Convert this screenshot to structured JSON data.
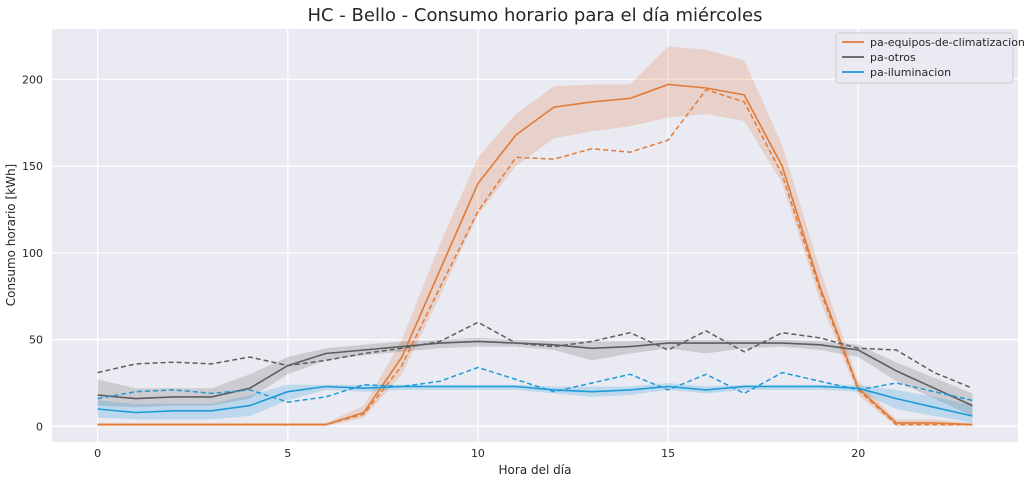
{
  "chart_data": {
    "type": "line",
    "title": "HC - Bello - Consumo horario para el día miércoles",
    "xlabel": "Hora del día",
    "ylabel": "Consumo horario [kWh]",
    "xlim": [
      -1.2,
      24.2
    ],
    "ylim": [
      -9,
      229
    ],
    "xticks": [
      0,
      5,
      10,
      15,
      20
    ],
    "yticks": [
      0,
      50,
      100,
      150,
      200
    ],
    "grid": true,
    "legend_position": "top-right",
    "x": [
      0,
      1,
      2,
      3,
      4,
      5,
      6,
      7,
      8,
      9,
      10,
      11,
      12,
      13,
      14,
      15,
      16,
      17,
      18,
      19,
      20,
      21,
      22,
      23
    ],
    "series": [
      {
        "name": "pa-equipos-de-climatizacion",
        "color": "#e07b39",
        "mean": [
          1,
          1,
          1,
          1,
          1,
          1,
          1,
          8,
          40,
          90,
          140,
          168,
          184,
          187,
          189,
          197,
          195,
          191,
          150,
          80,
          22,
          2,
          2,
          1
        ],
        "lower": [
          0,
          0,
          0,
          0,
          0,
          0,
          0,
          5,
          30,
          75,
          122,
          150,
          166,
          170,
          173,
          178,
          180,
          176,
          140,
          72,
          18,
          0,
          0,
          0
        ],
        "upper": [
          2,
          2,
          2,
          2,
          2,
          2,
          2,
          12,
          50,
          105,
          155,
          180,
          196,
          197,
          197,
          219,
          217,
          211,
          162,
          90,
          26,
          4,
          4,
          2
        ],
        "reference": [
          1,
          1,
          1,
          1,
          1,
          1,
          1,
          7,
          35,
          80,
          124,
          155,
          154,
          160,
          158,
          165,
          194,
          187,
          145,
          78,
          21,
          1,
          1,
          1
        ]
      },
      {
        "name": "pa-otros",
        "color": "#5e5e5e",
        "mean": [
          18,
          16,
          17,
          17,
          22,
          35,
          42,
          44,
          46,
          48,
          49,
          48,
          47,
          45,
          46,
          48,
          48,
          48,
          48,
          47,
          44,
          32,
          22,
          12
        ],
        "lower": [
          12,
          11,
          12,
          12,
          16,
          30,
          38,
          41,
          43,
          45,
          46,
          46,
          44,
          38,
          42,
          45,
          42,
          45,
          46,
          44,
          40,
          26,
          16,
          6
        ],
        "upper": [
          27,
          22,
          22,
          22,
          30,
          40,
          45,
          47,
          49,
          50,
          51,
          50,
          49,
          49,
          49,
          50,
          50,
          50,
          50,
          49,
          47,
          37,
          28,
          19
        ],
        "reference": [
          31,
          36,
          37,
          36,
          40,
          35,
          38,
          42,
          45,
          49,
          60,
          48,
          46,
          49,
          54,
          44,
          55,
          43,
          54,
          51,
          45,
          44,
          31,
          22
        ]
      },
      {
        "name": "pa-iluminacion",
        "color": "#1f9bd8",
        "mean": [
          10,
          8,
          9,
          9,
          12,
          20,
          23,
          22,
          23,
          23,
          23,
          23,
          21,
          20,
          21,
          23,
          21,
          23,
          23,
          23,
          22,
          16,
          11,
          6
        ],
        "lower": [
          5,
          4,
          4,
          4,
          6,
          15,
          21,
          20,
          21,
          21,
          21,
          21,
          19,
          17,
          18,
          21,
          19,
          21,
          21,
          21,
          20,
          10,
          6,
          2
        ],
        "upper": [
          15,
          13,
          13,
          13,
          18,
          24,
          24,
          24,
          24,
          24,
          24,
          24,
          23,
          23,
          23,
          25,
          23,
          24,
          24,
          24,
          24,
          21,
          17,
          12
        ],
        "reference": [
          16,
          20,
          21,
          19,
          21,
          14,
          17,
          24,
          23,
          26,
          34,
          27,
          20,
          25,
          30,
          21,
          30,
          19,
          31,
          26,
          21,
          25,
          20,
          15
        ]
      }
    ]
  }
}
